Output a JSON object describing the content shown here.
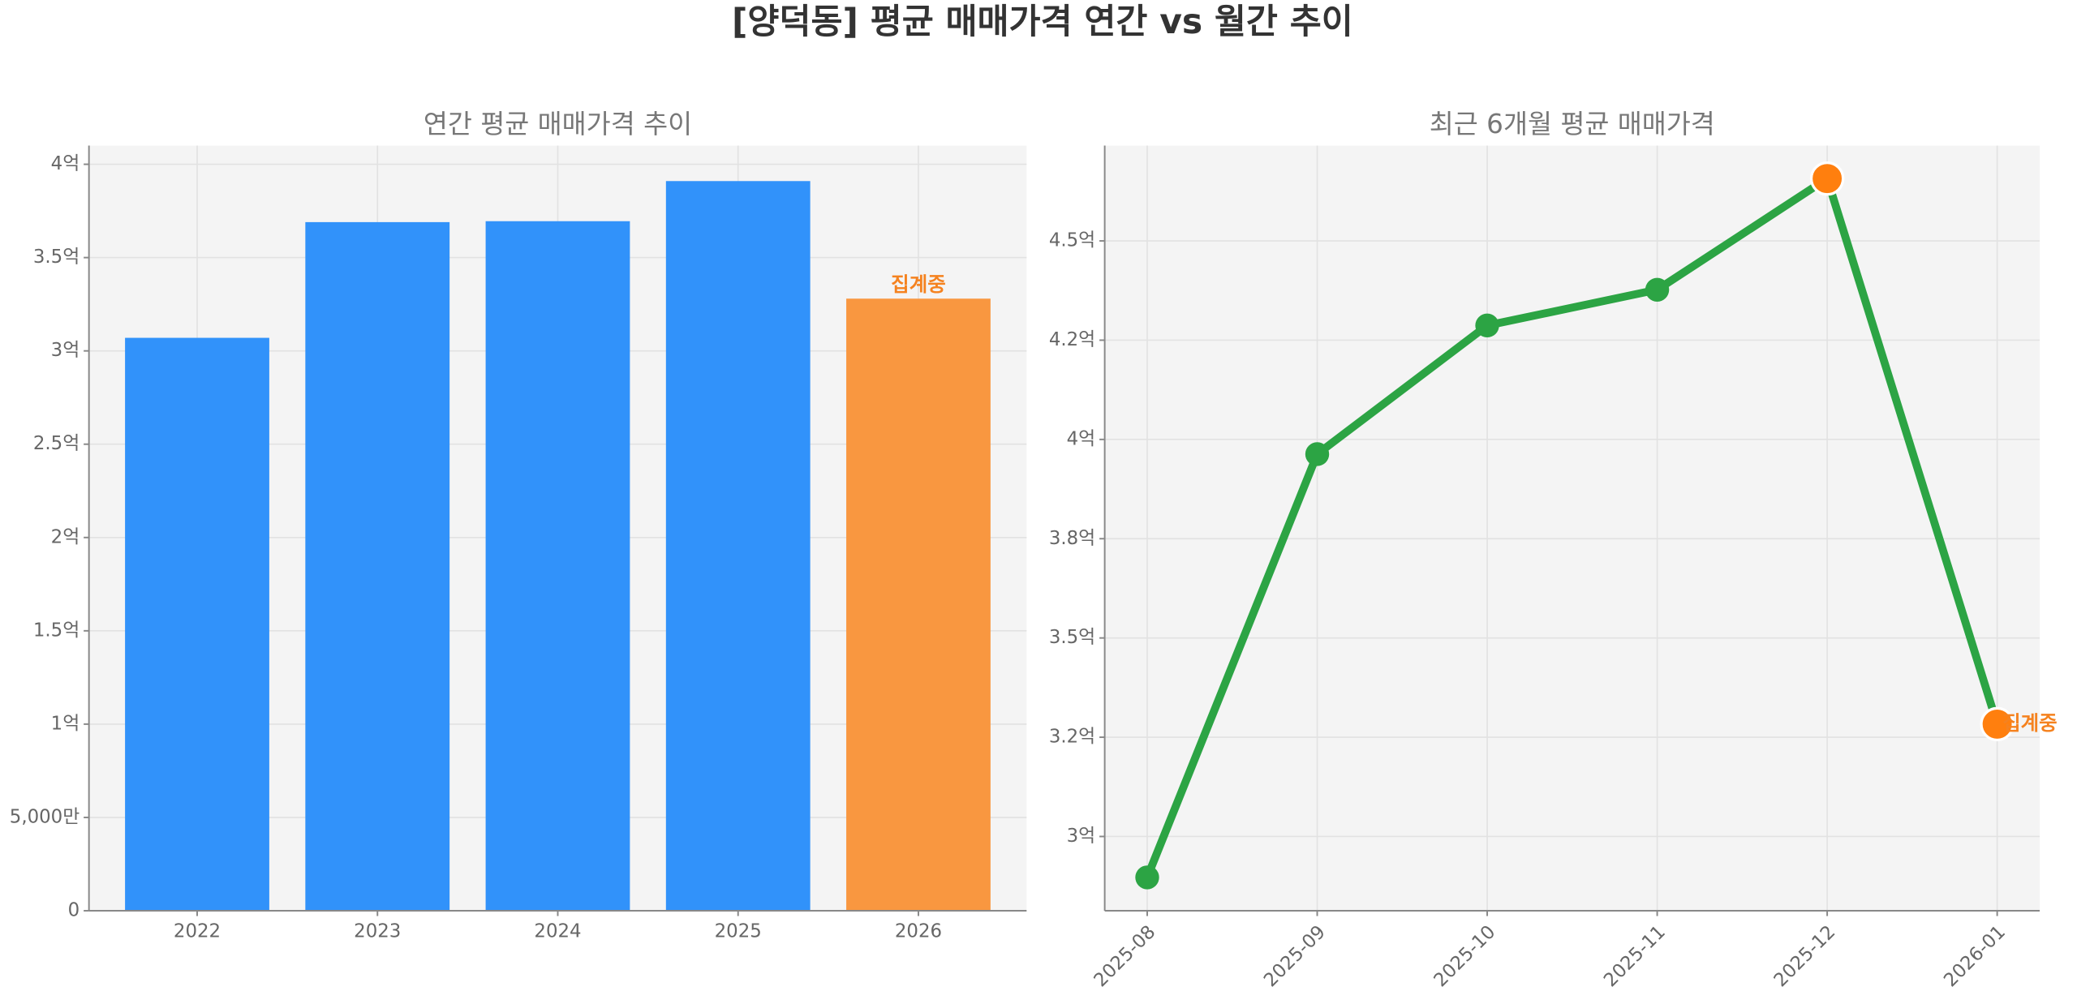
{
  "title": "[양덕동] 평균 매매가격 연간 vs 월간 추이",
  "chart_data": [
    {
      "type": "bar",
      "title": "연간 평균 매매가격 추이",
      "categories": [
        "2022",
        "2023",
        "2024",
        "2025",
        "2026"
      ],
      "values": [
        307000000,
        369000000,
        369500000,
        391000000,
        328000000
      ],
      "colors": [
        "#3192fa",
        "#3192fa",
        "#3192fa",
        "#3192fa",
        "#f99740"
      ],
      "annotations": [
        {
          "category": "2026",
          "text": "집계중",
          "color": "#f5821f"
        }
      ],
      "ylim": [
        0,
        410000000
      ],
      "yticks": [
        0,
        {
          "value": 50000000,
          "label": "5,000만"
        },
        {
          "value": 100000000,
          "label": "1억"
        },
        {
          "value": 150000000,
          "label": "1.5억"
        },
        {
          "value": 200000000,
          "label": "2억"
        },
        {
          "value": 250000000,
          "label": "2.5억"
        },
        {
          "value": 300000000,
          "label": "3억"
        },
        {
          "value": 350000000,
          "label": "3.5억"
        },
        {
          "value": 400000000,
          "label": "4억"
        }
      ],
      "grid": true
    },
    {
      "type": "line",
      "title": "최근 6개월 평균 매매가격",
      "categories": [
        "2025-08",
        "2025-09",
        "2025-10",
        "2025-11",
        "2025-12",
        "2026-01"
      ],
      "values": [
        289700000,
        396300000,
        428700000,
        437700000,
        465700000,
        328300000
      ],
      "color": "#2ca444",
      "marker_colors": [
        "#2ca444",
        "#2ca444",
        "#2ca444",
        "#2ca444",
        "#ff7f0e",
        "#ff7f0e"
      ],
      "annotations": [
        {
          "category": "2026-01",
          "text": "집계중",
          "color": "#f5821f"
        }
      ],
      "ylim": [
        281300000,
        474000000
      ],
      "yticks": [
        {
          "value": 300000000,
          "label": "3억"
        },
        {
          "value": 325000000,
          "label": "3.2억"
        },
        {
          "value": 350000000,
          "label": "3.5억"
        },
        {
          "value": 375000000,
          "label": "3.8억"
        },
        {
          "value": 400000000,
          "label": "4억"
        },
        {
          "value": 425000000,
          "label": "4.2억"
        },
        {
          "value": 450000000,
          "label": "4.5억"
        }
      ],
      "grid": true
    }
  ]
}
